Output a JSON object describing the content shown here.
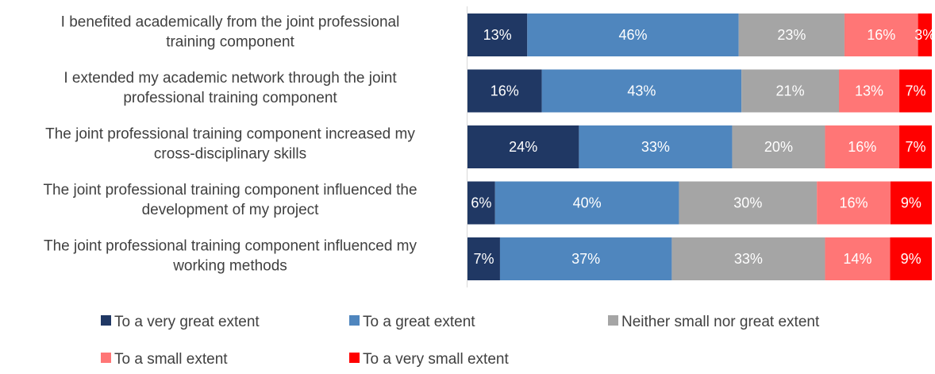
{
  "chart_data": {
    "type": "bar",
    "orientation": "horizontal",
    "stacked": true,
    "percent_stacked": true,
    "categories": [
      "I benefited academically from the joint professional training component",
      "I extended my academic network through the joint professional training component",
      "The joint professional training component increased my cross-disciplinary skills",
      "The joint professional training component influenced the development of my project",
      "The joint professional training component influenced my working methods"
    ],
    "series": [
      {
        "name": "To a very great extent",
        "color": "#203864",
        "label_color": "#ffffff",
        "values": [
          13,
          16,
          24,
          6,
          7
        ]
      },
      {
        "name": "To a great extent",
        "color": "#4f86be",
        "label_color": "#ffffff",
        "values": [
          46,
          43,
          33,
          40,
          37
        ]
      },
      {
        "name": "Neither small nor great extent",
        "color": "#a5a5a5",
        "label_color": "#ffffff",
        "values": [
          23,
          21,
          20,
          30,
          33
        ]
      },
      {
        "name": "To a small extent",
        "color": "#ff7676",
        "label_color": "#ffffff",
        "values": [
          16,
          13,
          16,
          16,
          14
        ]
      },
      {
        "name": "To a very small extent",
        "color": "#ff0000",
        "label_color": "#ffffff",
        "values": [
          3,
          7,
          7,
          9,
          9
        ]
      }
    ],
    "data_labels": [
      [
        "13%",
        "46%",
        "23%",
        "16%",
        "3%"
      ],
      [
        "16%",
        "43%",
        "21%",
        "13%",
        "7%"
      ],
      [
        "24%",
        "33%",
        "20%",
        "16%",
        "7%"
      ],
      [
        "6%",
        "40%",
        "30%",
        "16%",
        "9%"
      ],
      [
        "7%",
        "37%",
        "33%",
        "14%",
        "9%"
      ]
    ],
    "category_label_lines": [
      [
        "I benefited academically from the joint professional",
        "training component"
      ],
      [
        "I extended my academic network through the joint",
        "professional training component"
      ],
      [
        "The joint professional training component increased my",
        "cross-disciplinary skills"
      ],
      [
        "The joint professional training component influenced the",
        "development of my project"
      ],
      [
        "The joint professional training component influenced my",
        "working methods"
      ]
    ],
    "legend_position": "bottom",
    "grid": false
  }
}
